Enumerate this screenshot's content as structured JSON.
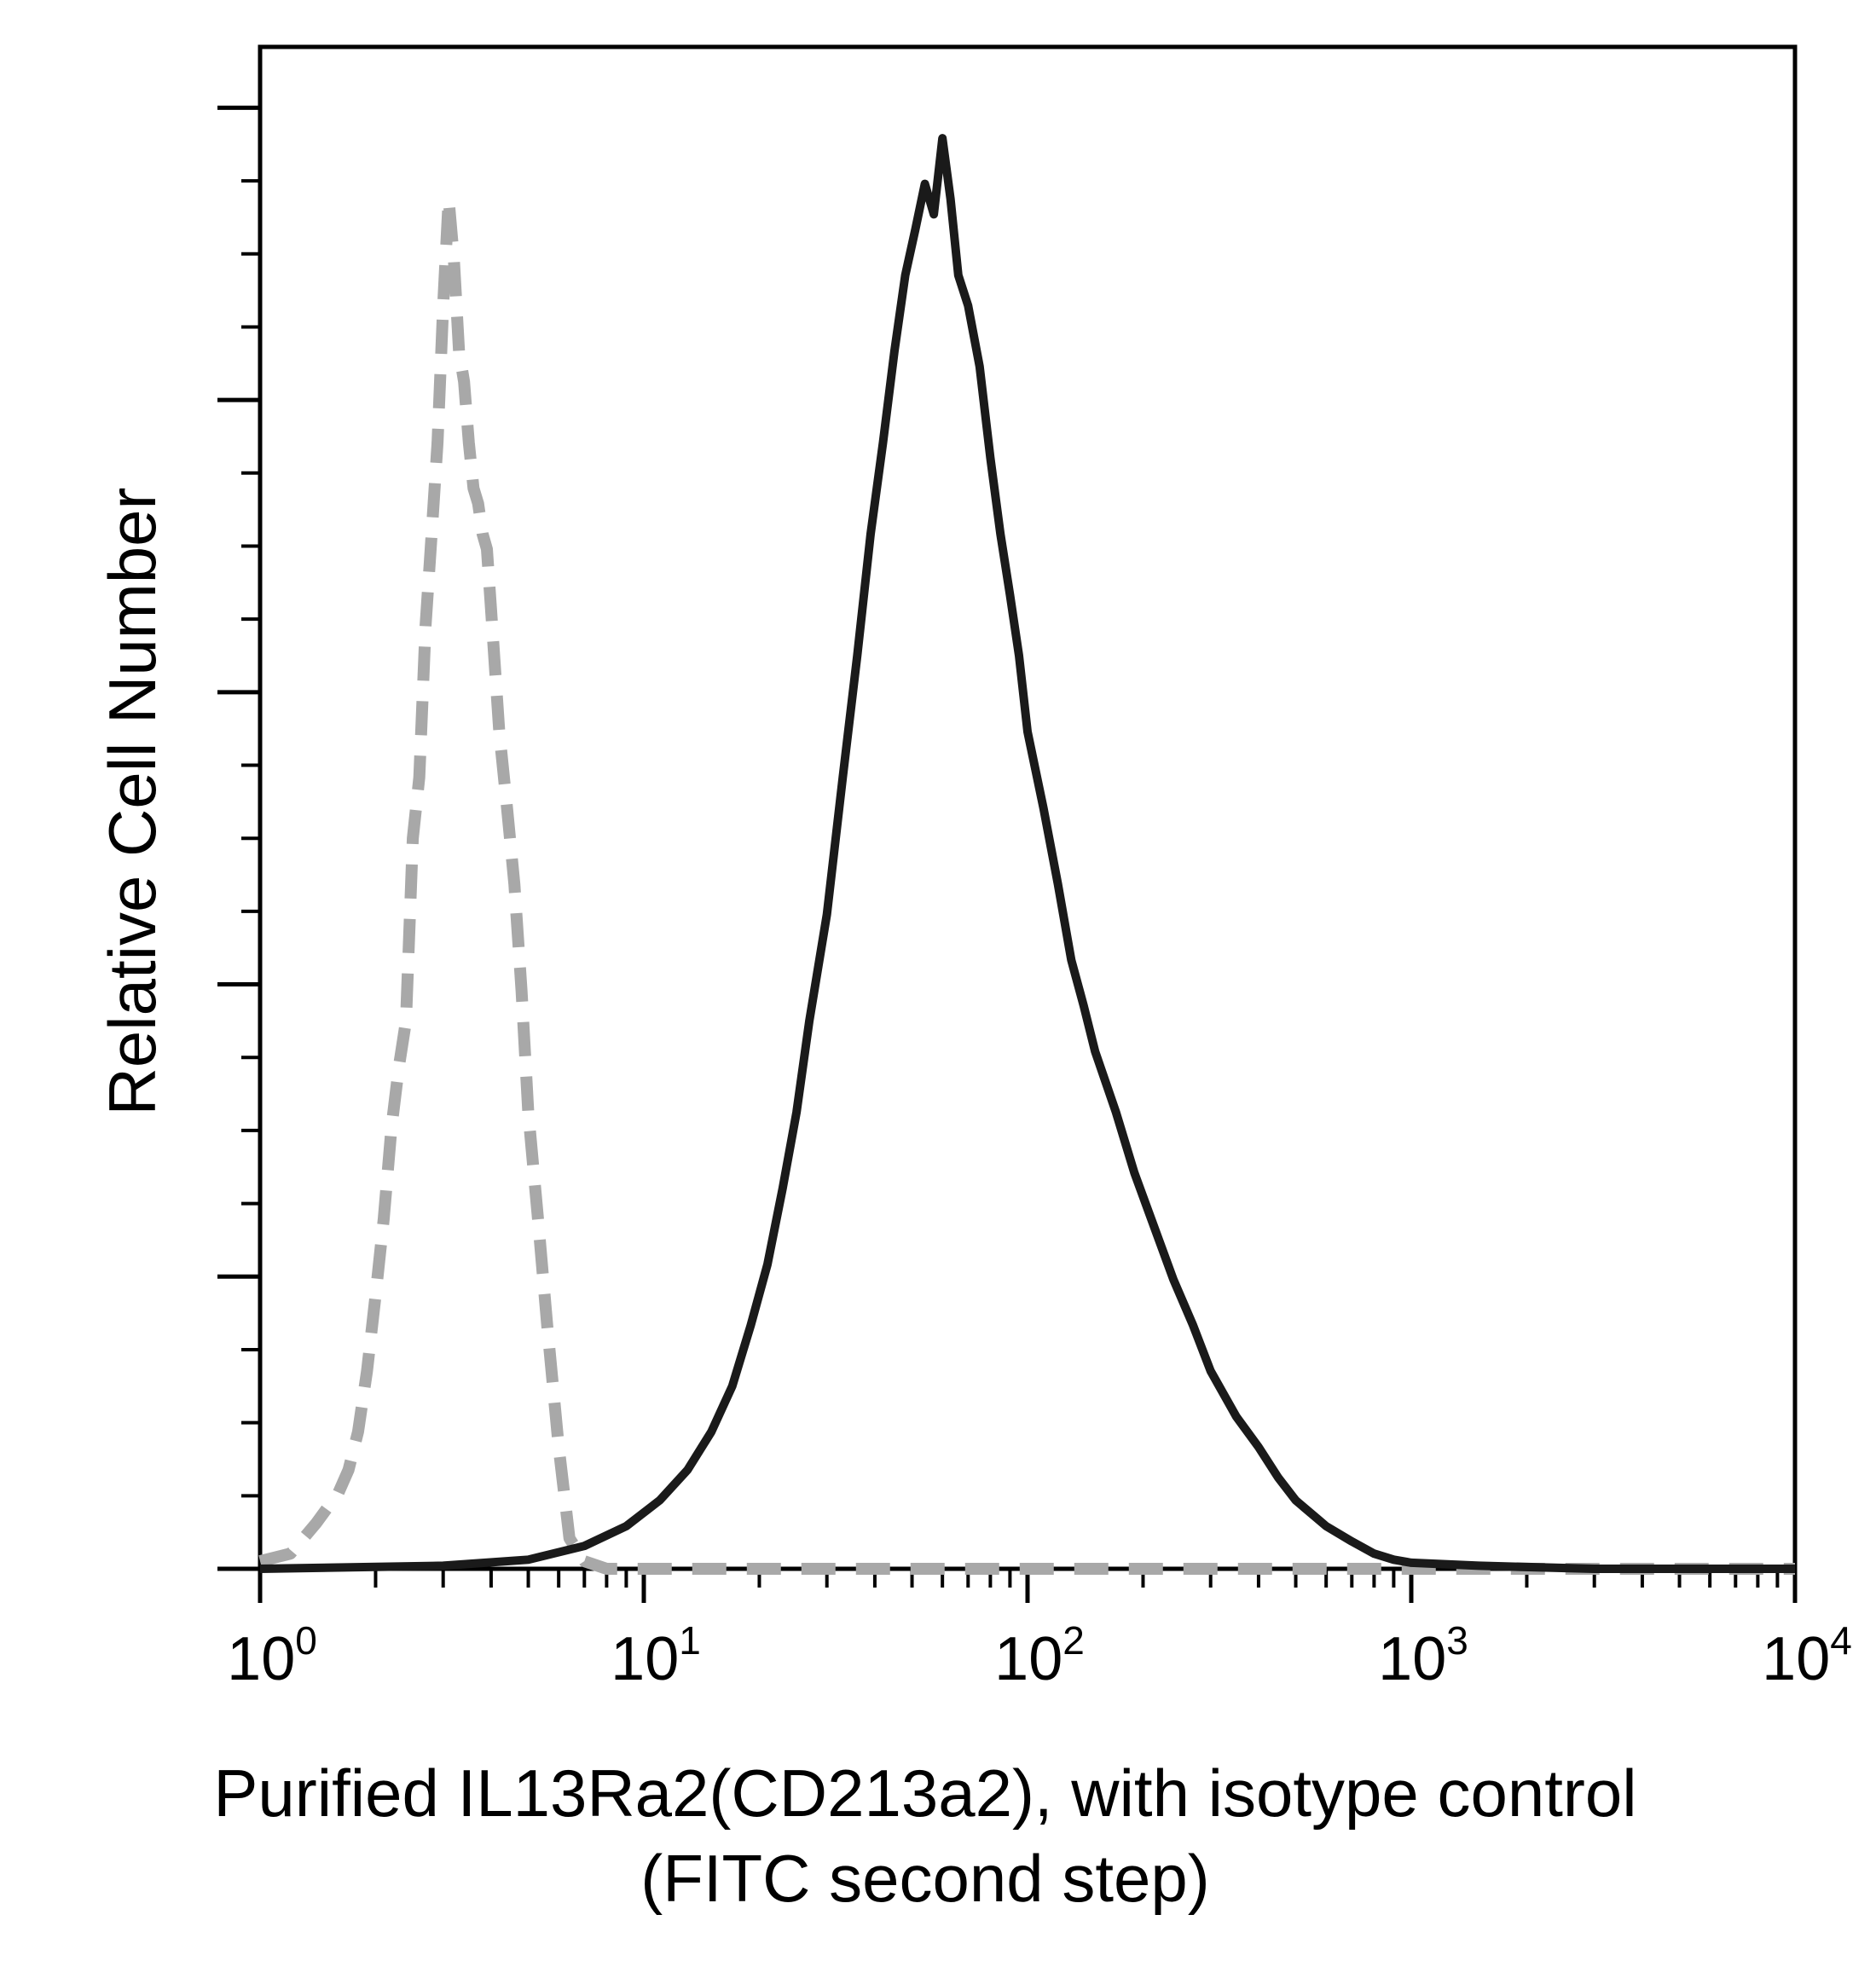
{
  "chart_data": {
    "type": "line",
    "title": "",
    "xlabel": "Purified IL13Ra2(CD213a2), with isotype control",
    "xlabel_line2": "(FITC second step)",
    "ylabel": "Relative Cell Number",
    "x_scale": "log",
    "xlim": [
      1,
      10000
    ],
    "ylim": [
      0,
      100
    ],
    "x_tick_labels": [
      {
        "base": "10",
        "exp": "0",
        "value": 1
      },
      {
        "base": "10",
        "exp": "1",
        "value": 10
      },
      {
        "base": "10",
        "exp": "2",
        "value": 100
      },
      {
        "base": "10",
        "exp": "3",
        "value": 1000
      },
      {
        "base": "10",
        "exp": "4",
        "value": 10000
      }
    ],
    "y_major_ticks": [
      0,
      19.2,
      38.4,
      57.6,
      76.8,
      96
    ],
    "grid": false,
    "legend": "none",
    "series": [
      {
        "style": "dashed-gray",
        "color": "#a8a8a8",
        "x": [
          1.0,
          1.2,
          1.4,
          1.6,
          1.7,
          1.8,
          1.9,
          2.0,
          2.1,
          2.2,
          2.3,
          2.4,
          2.5,
          2.6,
          2.7,
          2.8,
          2.9,
          3.0,
          3.1,
          3.2,
          3.3,
          3.4,
          3.5,
          3.6,
          3.7,
          3.8,
          3.9,
          4.0,
          4.2,
          4.4,
          4.6,
          4.8,
          5.0,
          5.3,
          5.6,
          6.0,
          6.4,
          7.0,
          8.0,
          10.0,
          100.0,
          1000.0,
          10000.0
        ],
        "y": [
          0.5,
          1.0,
          3.0,
          5.0,
          6.5,
          9.0,
          13.0,
          18.0,
          23.0,
          29.0,
          33.0,
          36.0,
          48.0,
          52.0,
          62.0,
          68.0,
          74.0,
          83.0,
          90.0,
          86.0,
          80.0,
          78.0,
          74.0,
          71.0,
          70.0,
          68.0,
          67.0,
          63.0,
          55.0,
          50.0,
          45.0,
          38.0,
          30.0,
          23.0,
          16.0,
          8.0,
          2.0,
          0.5,
          0.0,
          0.0,
          0.0,
          0.0,
          0.0
        ]
      },
      {
        "style": "solid-black",
        "color": "#1a1a1a",
        "x": [
          1.0,
          3.0,
          5.0,
          7.0,
          9.0,
          11.0,
          13.0,
          15.0,
          17.0,
          19.0,
          21.0,
          23.0,
          25.0,
          27.0,
          30.0,
          33.0,
          36.0,
          39.0,
          42.0,
          45.0,
          48.0,
          51.0,
          54.0,
          57.0,
          60.0,
          63.0,
          66.0,
          70.0,
          75.0,
          80.0,
          85.0,
          90.0,
          95.0,
          100.0,
          110.0,
          120.0,
          130.0,
          140.0,
          150.0,
          170.0,
          190.0,
          210.0,
          240.0,
          270.0,
          300.0,
          350.0,
          400.0,
          450.0,
          500.0,
          600.0,
          700.0,
          800.0,
          900.0,
          1000.0,
          1500.0,
          3000.0,
          10000.0
        ],
        "y": [
          0.0,
          0.2,
          0.6,
          1.5,
          2.8,
          4.5,
          6.5,
          9.0,
          12.0,
          16.0,
          20.0,
          25.0,
          30.0,
          36.0,
          43.0,
          52.0,
          60.0,
          68.0,
          74.0,
          80.0,
          85.0,
          88.0,
          91.0,
          89.0,
          94.0,
          90.0,
          85.0,
          83.0,
          79.0,
          73.0,
          68.0,
          64.0,
          60.0,
          55.0,
          50.0,
          45.0,
          40.0,
          37.0,
          34.0,
          30.0,
          26.0,
          23.0,
          19.0,
          16.0,
          13.0,
          10.0,
          8.0,
          6.0,
          4.5,
          2.8,
          1.8,
          1.0,
          0.6,
          0.4,
          0.2,
          0.0,
          0.0
        ]
      }
    ]
  }
}
